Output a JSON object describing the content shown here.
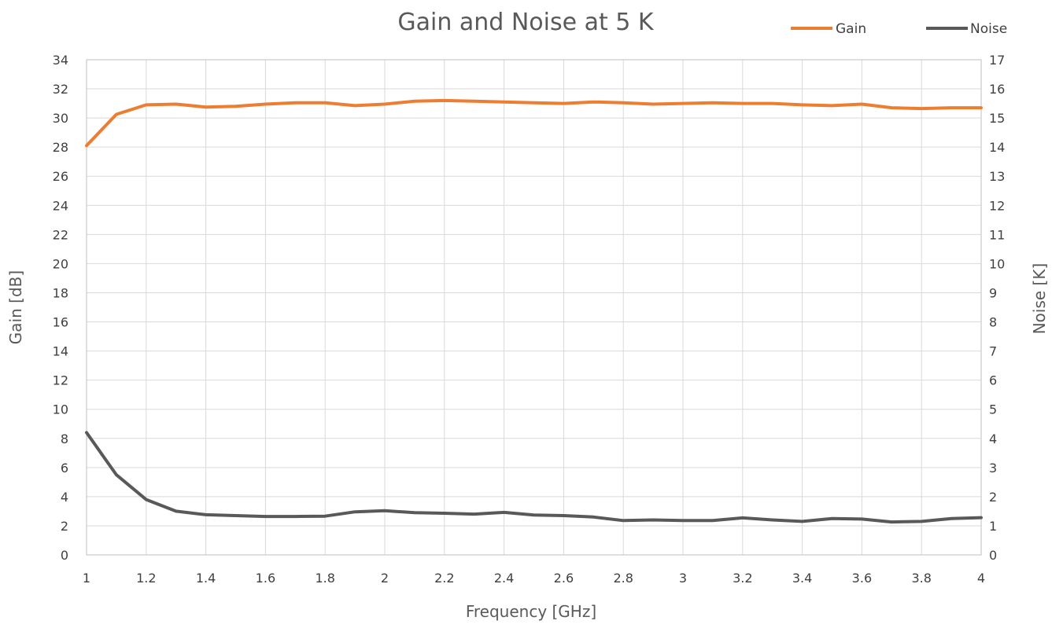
{
  "chart_data": {
    "type": "line",
    "title": "Gain and Noise at 5 K",
    "xlabel": "Frequency [GHz]",
    "ylabel_left": "Gain [dB]",
    "ylabel_right": "Noise [K]",
    "xlim": [
      1,
      4
    ],
    "ylim_left": [
      0,
      34
    ],
    "ylim_right": [
      0,
      17
    ],
    "grid": true,
    "legend": "top-right",
    "x_ticks": [
      "1",
      "1.2",
      "1.4",
      "1.6",
      "1.8",
      "2",
      "2.2",
      "2.4",
      "2.6",
      "2.8",
      "3",
      "3.2",
      "3.4",
      "3.6",
      "3.8",
      "4"
    ],
    "y_left_ticks": [
      "0",
      "2",
      "4",
      "6",
      "8",
      "10",
      "12",
      "14",
      "16",
      "18",
      "20",
      "22",
      "24",
      "26",
      "28",
      "30",
      "32",
      "34"
    ],
    "y_right_ticks": [
      "0",
      "1",
      "2",
      "3",
      "4",
      "5",
      "6",
      "7",
      "8",
      "9",
      "10",
      "11",
      "12",
      "13",
      "14",
      "15",
      "16",
      "17"
    ],
    "x": [
      1,
      1.1,
      1.2,
      1.3,
      1.4,
      1.5,
      1.6,
      1.7,
      1.8,
      1.9,
      2,
      2.1,
      2.2,
      2.3,
      2.4,
      2.5,
      2.6,
      2.7,
      2.8,
      2.9,
      3,
      3.1,
      3.2,
      3.3,
      3.4,
      3.5,
      3.6,
      3.7,
      3.8,
      3.9,
      4
    ],
    "series": [
      {
        "name": "Gain",
        "axis": "left",
        "color": "#ed7d31",
        "values": [
          28.1,
          30.25,
          30.9,
          30.95,
          30.75,
          30.8,
          30.95,
          31.05,
          31.05,
          30.85,
          30.95,
          31.15,
          31.2,
          31.15,
          31.1,
          31.05,
          31.0,
          31.1,
          31.05,
          30.95,
          31.0,
          31.05,
          31.0,
          31.0,
          30.9,
          30.85,
          30.95,
          30.7,
          30.65,
          30.7,
          30.7
        ]
      },
      {
        "name": "Noise",
        "axis": "right",
        "color": "#595959",
        "values": [
          4.2,
          2.75,
          1.9,
          1.5,
          1.38,
          1.35,
          1.32,
          1.32,
          1.33,
          1.48,
          1.52,
          1.45,
          1.43,
          1.4,
          1.46,
          1.37,
          1.35,
          1.3,
          1.18,
          1.2,
          1.18,
          1.18,
          1.27,
          1.2,
          1.15,
          1.25,
          1.23,
          1.13,
          1.15,
          1.25,
          1.28
        ]
      }
    ]
  }
}
